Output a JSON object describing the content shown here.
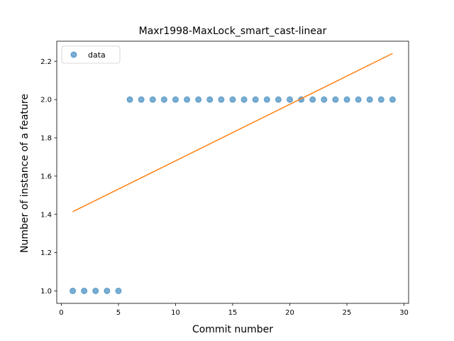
{
  "chart_data": {
    "type": "scatter",
    "title": "Maxr1998-MaxLock_smart_cast-linear",
    "xlabel": "Commit number",
    "ylabel": "Number of instance of a feature",
    "xlim": [
      -0.4,
      30.4
    ],
    "ylim": [
      0.935,
      2.305
    ],
    "xticks": [
      0,
      5,
      10,
      15,
      20,
      25,
      30
    ],
    "yticks": [
      1.0,
      1.2,
      1.4,
      1.6,
      1.8,
      2.0,
      2.2
    ],
    "grid": false,
    "legend_position": "upper-left",
    "series": [
      {
        "name": "data",
        "kind": "scatter",
        "color": "#1f77b4",
        "x": [
          1,
          2,
          3,
          4,
          5,
          6,
          7,
          8,
          9,
          10,
          11,
          12,
          13,
          14,
          15,
          16,
          17,
          18,
          19,
          20,
          21,
          22,
          23,
          24,
          25,
          26,
          27,
          28,
          29
        ],
        "y": [
          1,
          1,
          1,
          1,
          1,
          2,
          2,
          2,
          2,
          2,
          2,
          2,
          2,
          2,
          2,
          2,
          2,
          2,
          2,
          2,
          2,
          2,
          2,
          2,
          2,
          2,
          2,
          2,
          2
        ]
      },
      {
        "kind": "line",
        "color": "#ff7f0e",
        "x": [
          1,
          29
        ],
        "y": [
          1.414,
          2.241
        ]
      }
    ]
  }
}
